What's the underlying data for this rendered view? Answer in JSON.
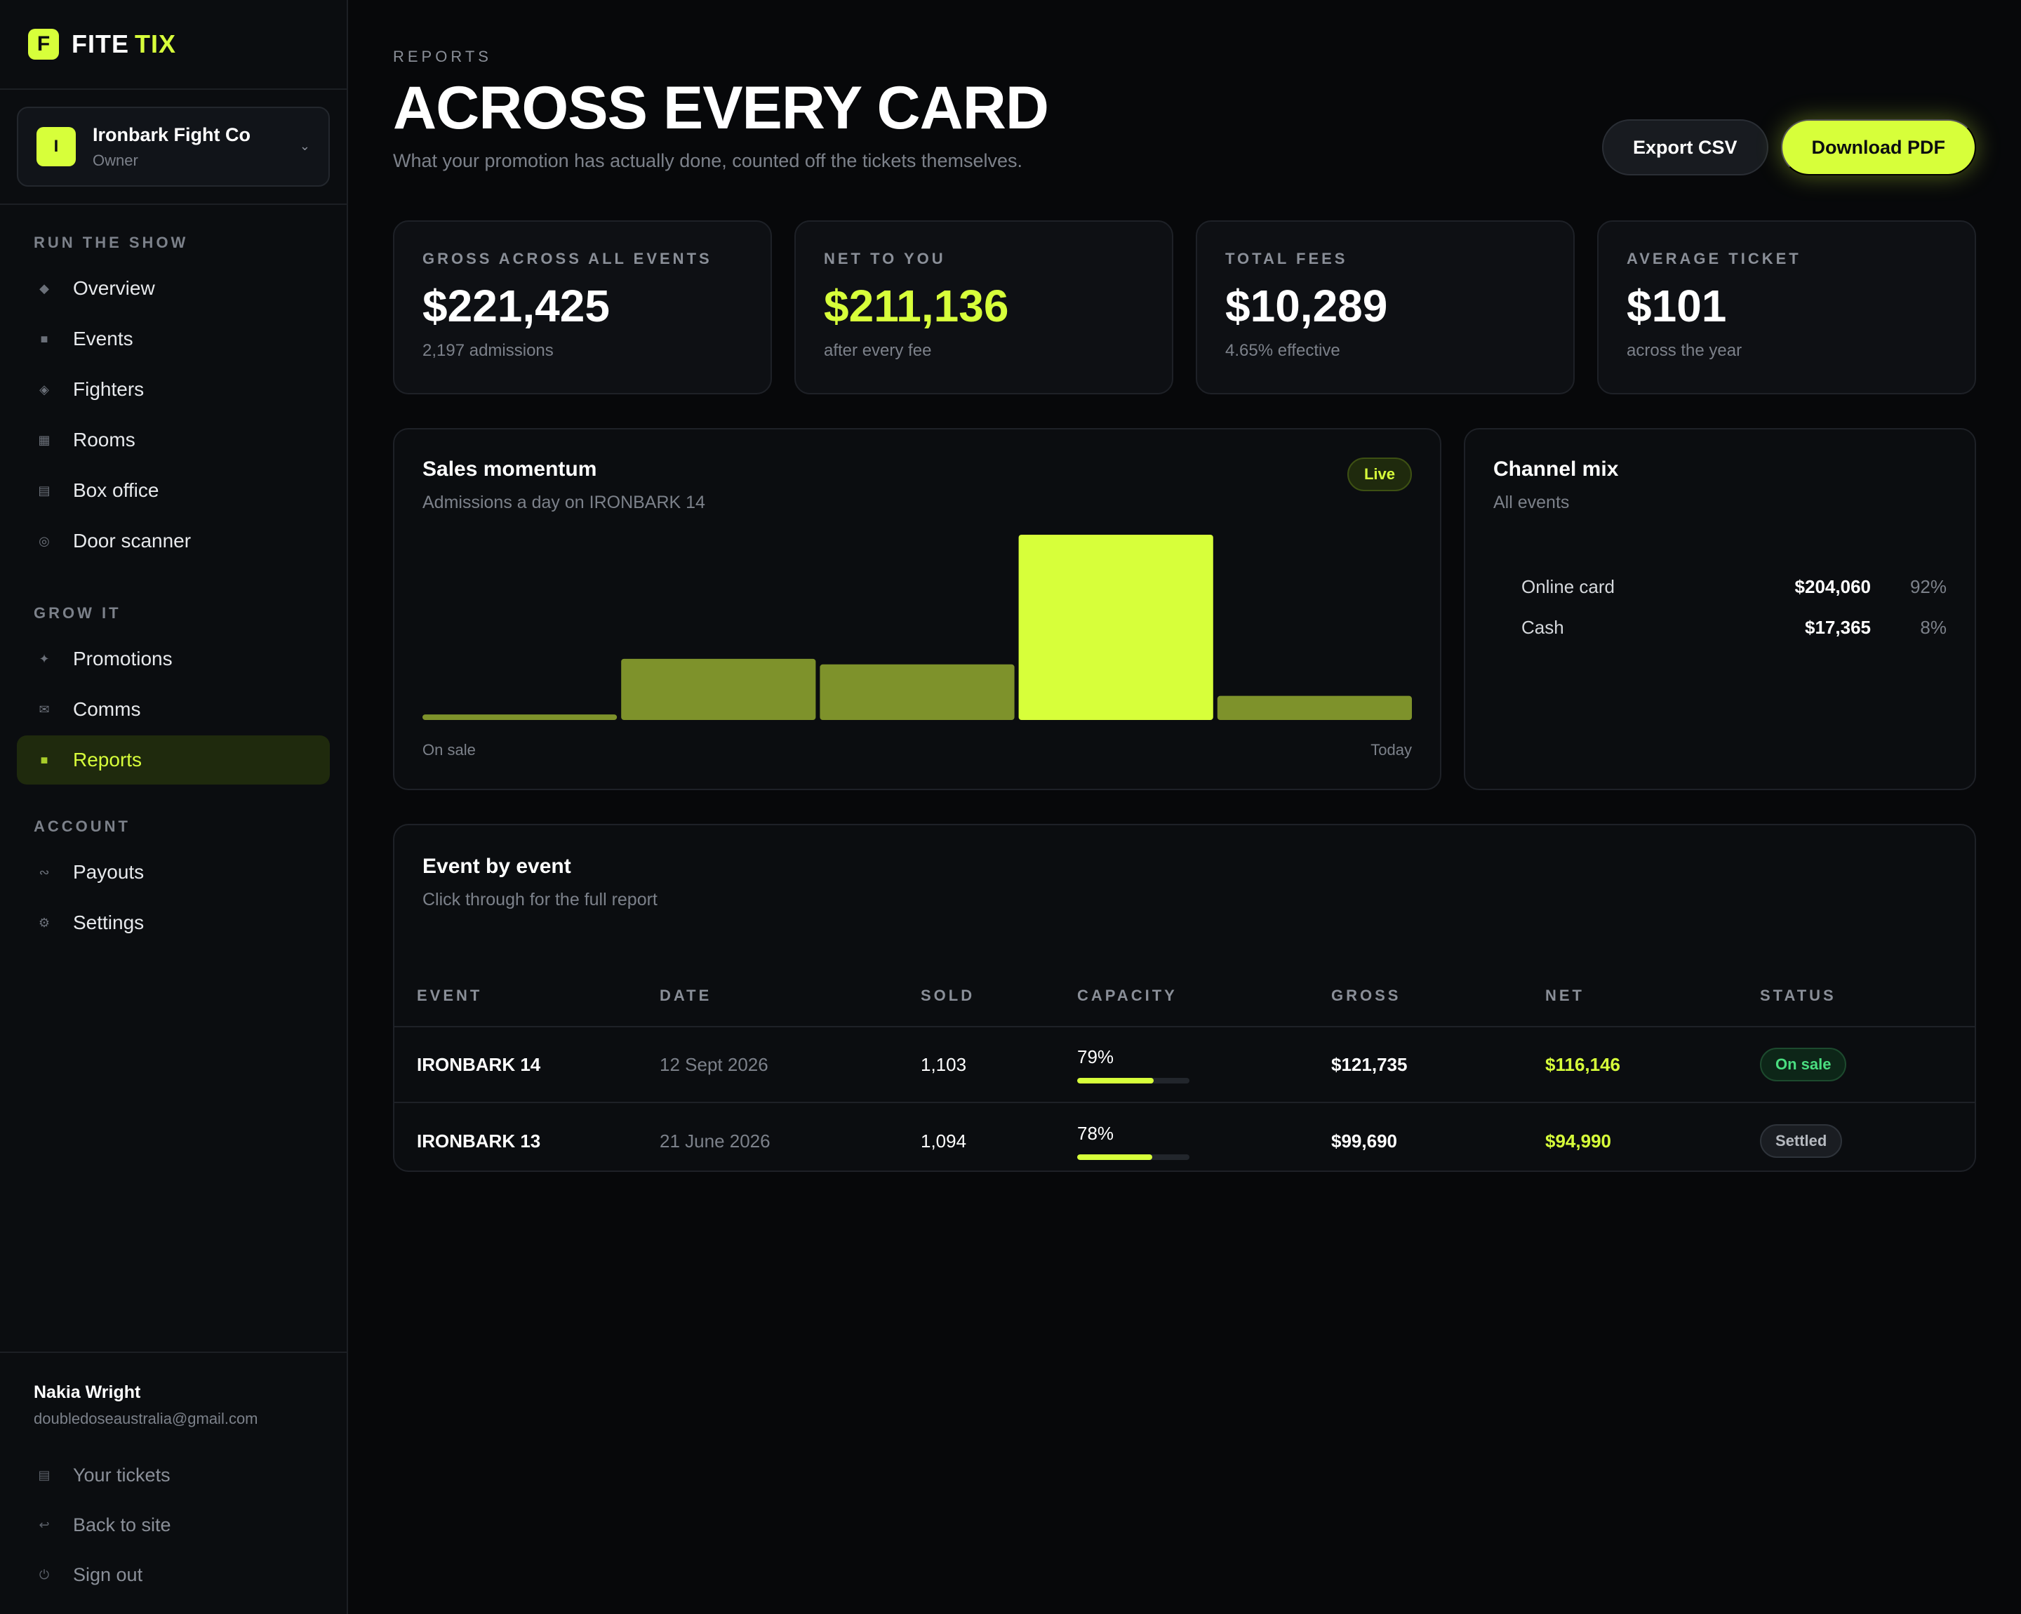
{
  "brand": {
    "mark": "F",
    "name_part1": "FITE",
    "name_part2": "TIX",
    "accent": "#d7ff3a"
  },
  "org": {
    "avatar": "I",
    "name": "Ironbark Fight Co",
    "role": "Owner"
  },
  "nav": {
    "sections": [
      {
        "heading": "RUN THE SHOW",
        "items": [
          {
            "label": "Overview",
            "icon": "diamond-icon"
          },
          {
            "label": "Events",
            "icon": "calendar-icon"
          },
          {
            "label": "Fighters",
            "icon": "fighter-icon"
          },
          {
            "label": "Rooms",
            "icon": "rooms-icon"
          },
          {
            "label": "Box office",
            "icon": "box-office-icon"
          },
          {
            "label": "Door scanner",
            "icon": "scanner-icon"
          }
        ]
      },
      {
        "heading": "GROW IT",
        "items": [
          {
            "label": "Promotions",
            "icon": "sparkle-icon"
          },
          {
            "label": "Comms",
            "icon": "mail-icon"
          },
          {
            "label": "Reports",
            "icon": "reports-icon",
            "active": true
          }
        ]
      },
      {
        "heading": "ACCOUNT",
        "items": [
          {
            "label": "Payouts",
            "icon": "payouts-icon"
          },
          {
            "label": "Settings",
            "icon": "gear-icon"
          }
        ]
      }
    ]
  },
  "user": {
    "name": "Nakia Wright",
    "email": "doubledoseaustralia@gmail.com",
    "links": [
      {
        "label": "Your tickets",
        "icon": "ticket-icon"
      },
      {
        "label": "Back to site",
        "icon": "back-arrow-icon"
      },
      {
        "label": "Sign out",
        "icon": "power-icon"
      }
    ]
  },
  "header": {
    "eyebrow": "REPORTS",
    "title": "ACROSS EVERY CARD",
    "subtitle": "What your promotion has actually done, counted off the tickets themselves.",
    "export_label": "Export CSV",
    "download_label": "Download PDF"
  },
  "kpis": [
    {
      "label": "GROSS ACROSS ALL EVENTS",
      "value": "$221,425",
      "sub": "2,197 admissions",
      "accent": false
    },
    {
      "label": "NET TO YOU",
      "value": "$211,136",
      "sub": "after every fee",
      "accent": true
    },
    {
      "label": "TOTAL FEES",
      "value": "$10,289",
      "sub": "4.65% effective",
      "accent": false
    },
    {
      "label": "AVERAGE TICKET",
      "value": "$101",
      "sub": "across the year",
      "accent": false
    }
  ],
  "sales_momentum": {
    "title": "Sales momentum",
    "subtitle": "Admissions a day on IRONBARK 14",
    "badge": "Live",
    "start_label": "On sale",
    "end_label": "Today"
  },
  "chart_data": {
    "type": "bar",
    "title": "Sales momentum",
    "subtitle": "Admissions a day on IRONBARK 14",
    "categories": [
      "On sale",
      "",
      "",
      "",
      "Today"
    ],
    "values": [
      3,
      33,
      30,
      100,
      13
    ],
    "highlight_index": 3,
    "colors": {
      "bar": "#7e922b",
      "highlight": "#d7ff3a"
    },
    "ylim": [
      0,
      100
    ],
    "grid": false,
    "legend": "none"
  },
  "channel_mix": {
    "title": "Channel mix",
    "subtitle": "All events",
    "rows": [
      {
        "name": "Online card",
        "amount": "$204,060",
        "pct": "92%"
      },
      {
        "name": "Cash",
        "amount": "$17,365",
        "pct": "8%"
      }
    ]
  },
  "events_table": {
    "title": "Event by event",
    "subtitle": "Click through for the full report",
    "columns": [
      "EVENT",
      "DATE",
      "SOLD",
      "CAPACITY",
      "GROSS",
      "NET",
      "STATUS"
    ],
    "rows": [
      {
        "event": "IRONBARK 14",
        "date": "12 Sept 2026",
        "sold": "1,103",
        "capacity": "79%",
        "capacity_value": 79,
        "gross": "$121,735",
        "net": "$116,146",
        "status": "On sale",
        "status_kind": "onsale"
      },
      {
        "event": "IRONBARK 13",
        "date": "21 June 2026",
        "sold": "1,094",
        "capacity": "78%",
        "capacity_value": 78,
        "gross": "$99,690",
        "net": "$94,990",
        "status": "Settled",
        "status_kind": "settled"
      }
    ]
  }
}
